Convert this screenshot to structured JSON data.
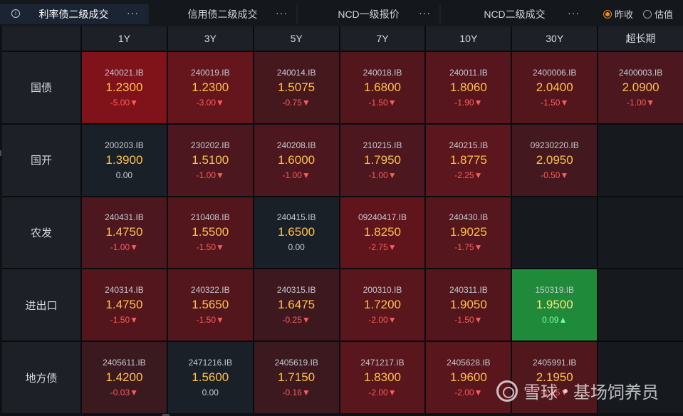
{
  "tabs": [
    {
      "label": "利率债二级成交",
      "active": true
    },
    {
      "label": "信用债二级成交",
      "active": false
    },
    {
      "label": "NCD一级报价",
      "active": false
    },
    {
      "label": "NCD二级成交",
      "active": false
    }
  ],
  "more_label": "···",
  "info_glyph": "i",
  "radio_options": [
    {
      "label": "昨收",
      "selected": true
    },
    {
      "label": "估值",
      "selected": false
    }
  ],
  "columns": [
    "1Y",
    "3Y",
    "5Y",
    "7Y",
    "10Y",
    "30Y",
    "超长期"
  ],
  "colors": {
    "yield": "#ffc14d",
    "down": "#ff5a5a",
    "up": "#7dffa0",
    "neutral_cell": "#1a2028",
    "empty_cell": "#161a1f",
    "accent": "#f08a24"
  },
  "rows": [
    {
      "label": "国债",
      "cells": [
        {
          "code": "240021.IB",
          "yield": "1.2300",
          "change": "-5.00▼",
          "dir": "down",
          "heat": 0.95
        },
        {
          "code": "240019.IB",
          "yield": "1.2300",
          "change": "-3.00▼",
          "dir": "down",
          "heat": 0.65
        },
        {
          "code": "240014.IB",
          "yield": "1.5075",
          "change": "-0.75▼",
          "dir": "down",
          "heat": 0.3
        },
        {
          "code": "240018.IB",
          "yield": "1.6800",
          "change": "-1.50▼",
          "dir": "down",
          "heat": 0.45
        },
        {
          "code": "240011.IB",
          "yield": "1.8060",
          "change": "-1.90▼",
          "dir": "down",
          "heat": 0.5
        },
        {
          "code": "2400006.IB",
          "yield": "2.0400",
          "change": "-1.50▼",
          "dir": "down",
          "heat": 0.45
        },
        {
          "code": "2400003.IB",
          "yield": "2.0900",
          "change": "-1.00▼",
          "dir": "down",
          "heat": 0.38
        }
      ]
    },
    {
      "label": "国开",
      "cells": [
        {
          "code": "200203.IB",
          "yield": "1.3900",
          "change": "0.00",
          "dir": "flat",
          "heat": 0
        },
        {
          "code": "230202.IB",
          "yield": "1.5100",
          "change": "-1.00▼",
          "dir": "down",
          "heat": 0.38
        },
        {
          "code": "240208.IB",
          "yield": "1.6000",
          "change": "-1.00▼",
          "dir": "down",
          "heat": 0.38
        },
        {
          "code": "210215.IB",
          "yield": "1.7950",
          "change": "-1.00▼",
          "dir": "down",
          "heat": 0.38
        },
        {
          "code": "240215.IB",
          "yield": "1.8775",
          "change": "-2.25▼",
          "dir": "down",
          "heat": 0.55
        },
        {
          "code": "09230220.IB",
          "yield": "2.0950",
          "change": "-0.50▼",
          "dir": "down",
          "heat": 0.28
        },
        null
      ]
    },
    {
      "label": "农发",
      "cells": [
        {
          "code": "240431.IB",
          "yield": "1.4750",
          "change": "-1.00▼",
          "dir": "down",
          "heat": 0.38
        },
        {
          "code": "210408.IB",
          "yield": "1.5500",
          "change": "-1.50▼",
          "dir": "down",
          "heat": 0.45
        },
        {
          "code": "240415.IB",
          "yield": "1.6500",
          "change": "0.00",
          "dir": "flat",
          "heat": 0
        },
        {
          "code": "09240417.IB",
          "yield": "1.8250",
          "change": "-2.75▼",
          "dir": "down",
          "heat": 0.6
        },
        {
          "code": "240430.IB",
          "yield": "1.9025",
          "change": "-1.75▼",
          "dir": "down",
          "heat": 0.48
        },
        null,
        null
      ]
    },
    {
      "label": "进出口",
      "cells": [
        {
          "code": "240314.IB",
          "yield": "1.4750",
          "change": "-1.50▼",
          "dir": "down",
          "heat": 0.45
        },
        {
          "code": "240322.IB",
          "yield": "1.5650",
          "change": "-1.50▼",
          "dir": "down",
          "heat": 0.45
        },
        {
          "code": "240315.IB",
          "yield": "1.6475",
          "change": "-0.25▼",
          "dir": "down",
          "heat": 0.22
        },
        {
          "code": "200310.IB",
          "yield": "1.7200",
          "change": "-2.00▼",
          "dir": "down",
          "heat": 0.52
        },
        {
          "code": "240311.IB",
          "yield": "1.9050",
          "change": "-1.50▼",
          "dir": "down",
          "heat": 0.45
        },
        {
          "code": "150319.IB",
          "yield": "1.9500",
          "change": "0.09▲",
          "dir": "up",
          "heat": 0
        },
        null
      ]
    },
    {
      "label": "地方债",
      "cells": [
        {
          "code": "2405611.IB",
          "yield": "1.4200",
          "change": "-0.03▼",
          "dir": "down",
          "heat": 0.18
        },
        {
          "code": "2471216.IB",
          "yield": "1.5600",
          "change": "0.00",
          "dir": "flat",
          "heat": 0
        },
        {
          "code": "2405619.IB",
          "yield": "1.7150",
          "change": "-0.16▼",
          "dir": "down",
          "heat": 0.2
        },
        {
          "code": "2471217.IB",
          "yield": "1.8300",
          "change": "-2.00▼",
          "dir": "down",
          "heat": 0.52
        },
        {
          "code": "2405628.IB",
          "yield": "1.9600",
          "change": "-2.00▼",
          "dir": "down",
          "heat": 0.52
        },
        {
          "code": "2405991.IB",
          "yield": "2.1950",
          "change": "-1.25▼",
          "dir": "down",
          "heat": 0.42
        },
        null
      ]
    }
  ],
  "watermark": {
    "brand": "雪球",
    "author": "基场饲养员"
  }
}
